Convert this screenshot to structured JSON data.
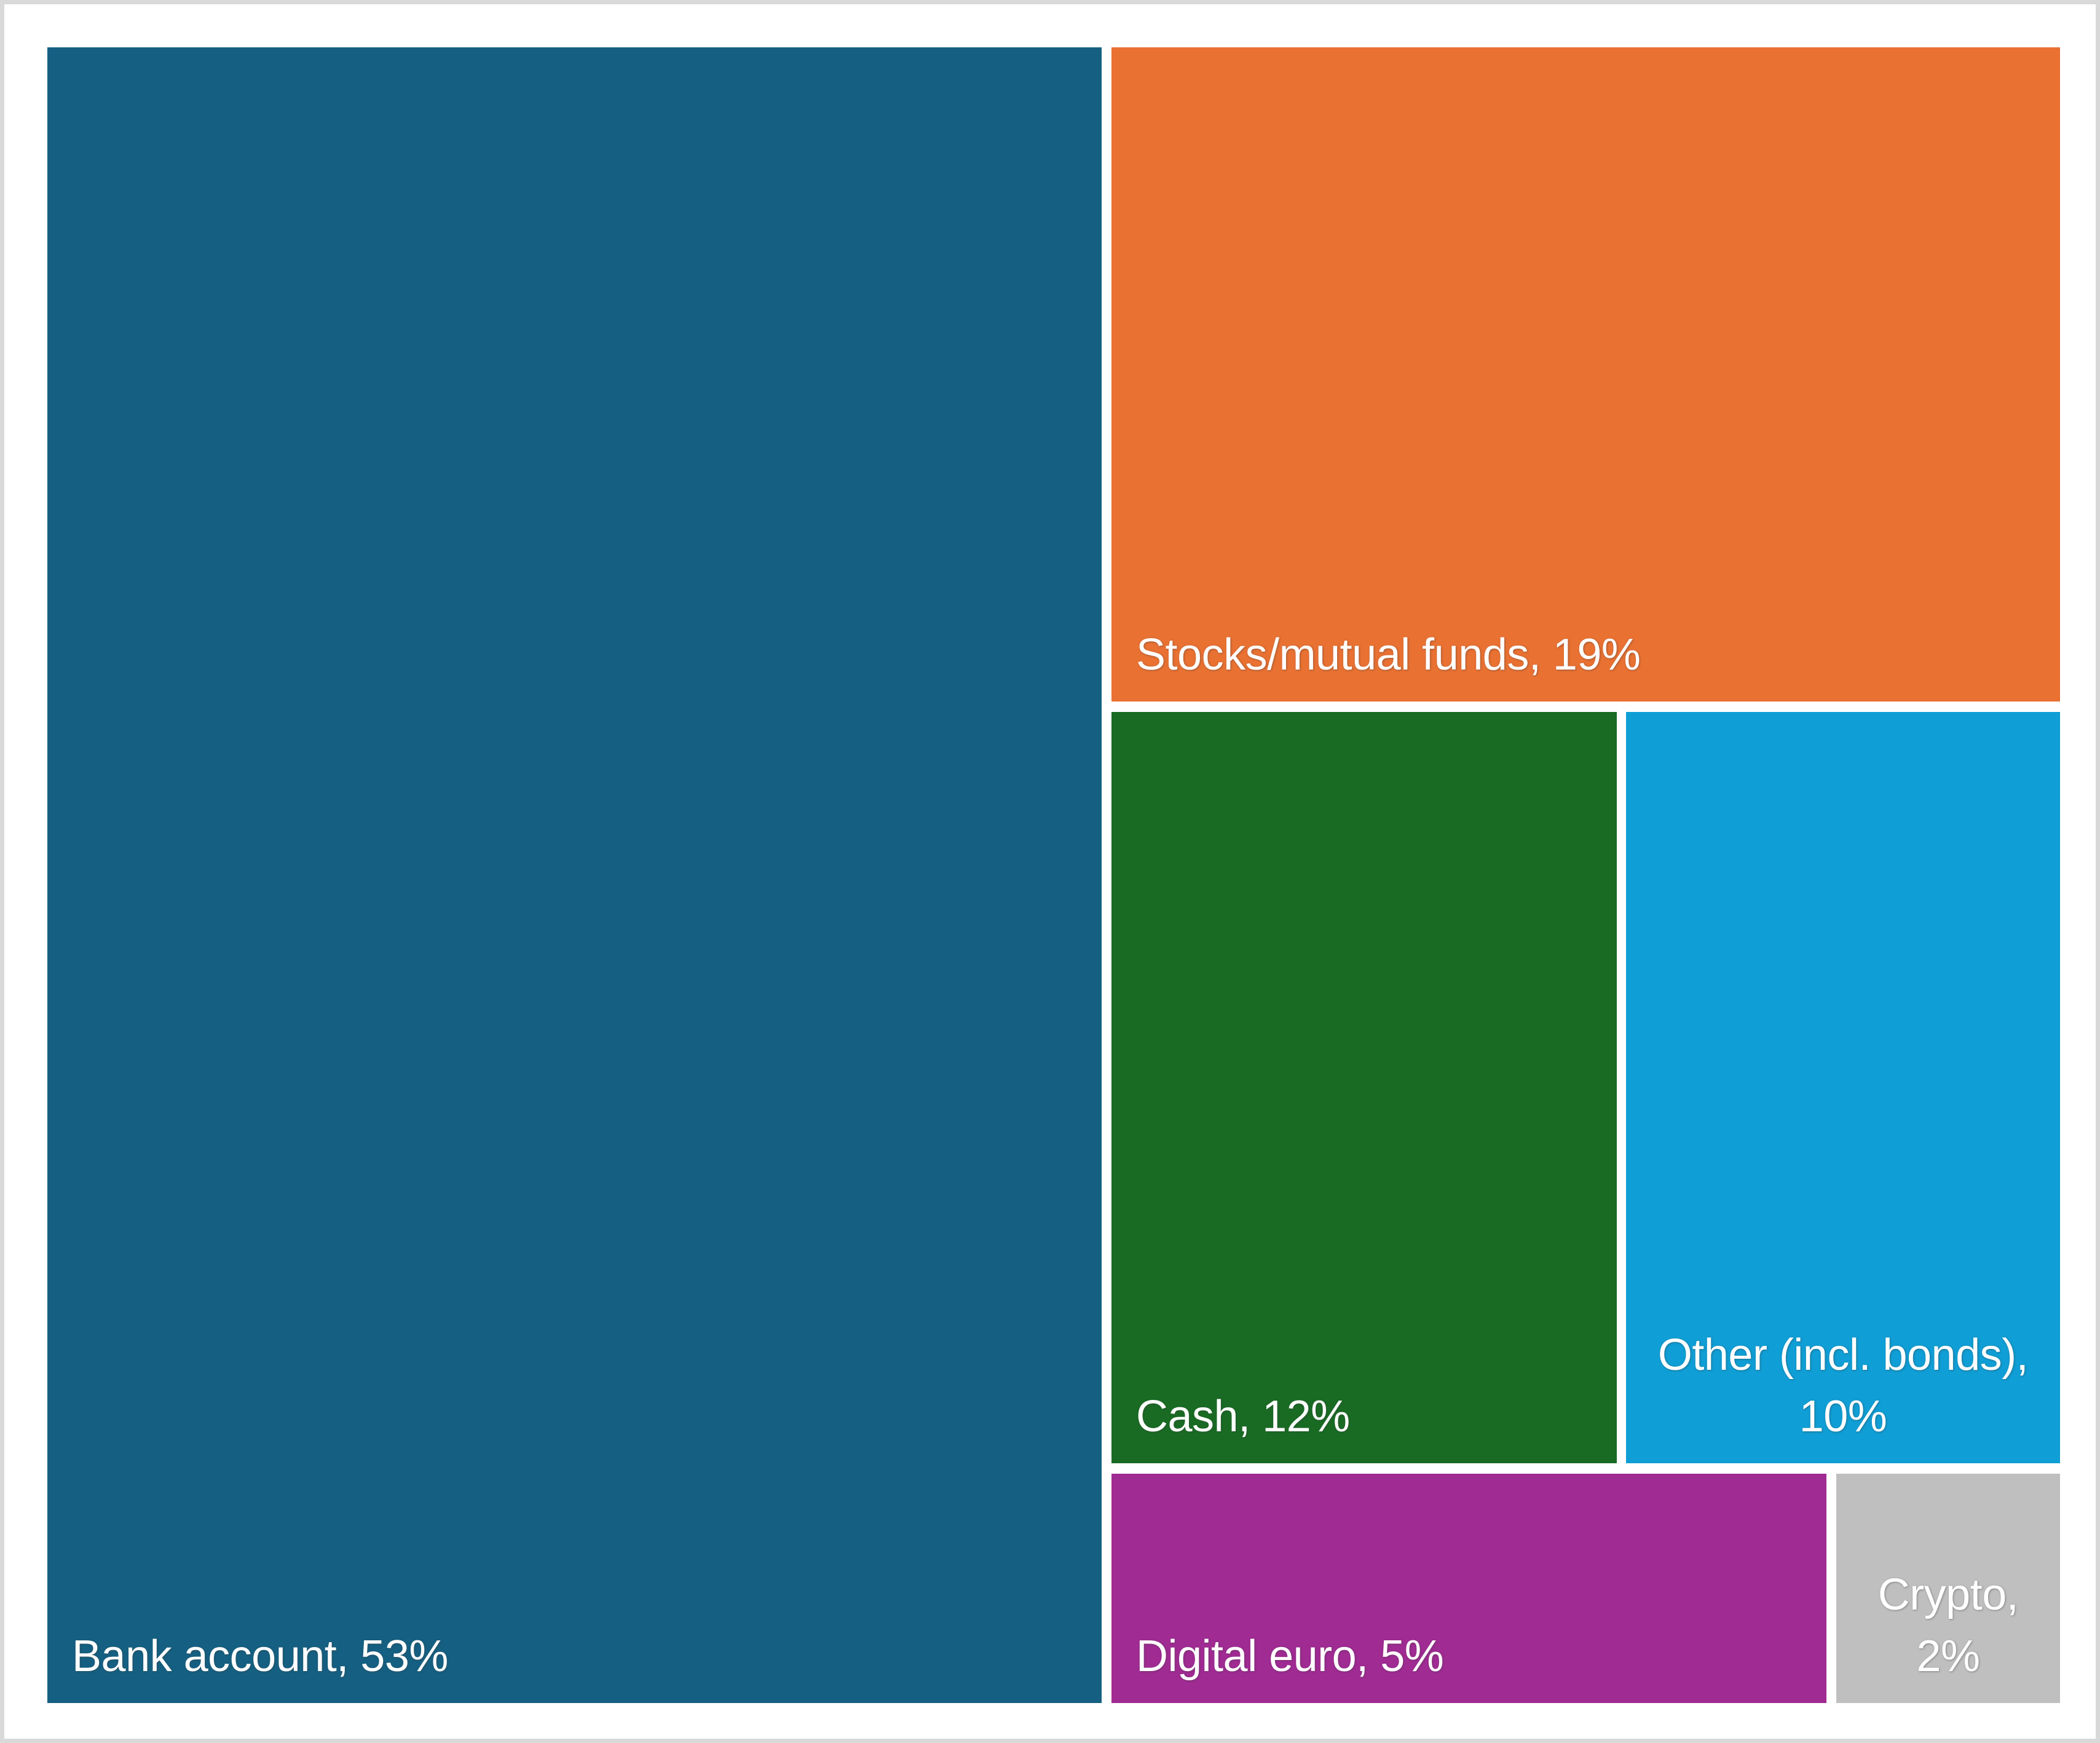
{
  "page": {
    "background_color": "#FFFFFF",
    "frame_border_color": "#D9D9D9",
    "label_text_color": "#FFFFFF"
  },
  "chart_data": {
    "type": "treemap",
    "title": "",
    "unit": "%",
    "legend": "off",
    "gridlines": "off",
    "categories": [
      "Bank account",
      "Stocks/mutual funds",
      "Cash",
      "Other (incl. bonds)",
      "Digital euro",
      "Crypto"
    ],
    "values": [
      53,
      19,
      12,
      10,
      5,
      2
    ],
    "items": [
      {
        "name": "Bank account",
        "value": 53,
        "label": "Bank account, 53%",
        "color": "#156082"
      },
      {
        "name": "Stocks/mutual funds",
        "value": 19,
        "label": "Stocks/mutual funds, 19%",
        "color": "#E97132"
      },
      {
        "name": "Cash",
        "value": 12,
        "label": "Cash, 12%",
        "color": "#196B24"
      },
      {
        "name": "Other (incl. bonds)",
        "value": 10,
        "label": "Other (incl. bonds), 10%",
        "color": "#0F9ED5"
      },
      {
        "name": "Digital euro",
        "value": 5,
        "label": "Digital euro, 5%",
        "color": "#A02B93"
      },
      {
        "name": "Crypto",
        "value": 2,
        "label": "Crypto, 2%",
        "color": "#BFBFBF"
      }
    ]
  }
}
